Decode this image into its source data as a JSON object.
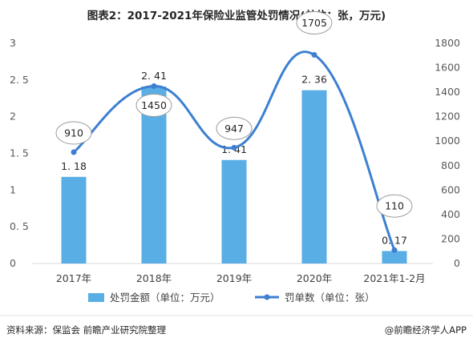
{
  "title": "图表2：2017-2021年保险业监管处罚情况(单位：张，万元)",
  "footer": {
    "source": "资料来源：保监会 前瞻产业研究院整理",
    "credit": "@前瞻经济学人APP"
  },
  "colors": {
    "bar": "#5aaee6",
    "line": "#3d7fd1",
    "bubble_stroke": "#9c9c9c"
  },
  "chart_data": {
    "type": "bar",
    "categories": [
      "2017年",
      "2018年",
      "2019年",
      "2020年",
      "2021年1-2月"
    ],
    "series": [
      {
        "name": "处罚金额（单位：万元）",
        "type": "bar",
        "axis": "left",
        "values": [
          1.18,
          2.41,
          1.41,
          2.36,
          0.17
        ],
        "labels": [
          "1. 18",
          "2. 41",
          "1. 41",
          "2. 36",
          "0. 17"
        ]
      },
      {
        "name": "罚单数（单位：张）",
        "type": "line",
        "axis": "right",
        "smooth": true,
        "values": [
          910,
          1450,
          947,
          1705,
          110
        ],
        "labels": [
          "910",
          "1450",
          "947",
          "1705",
          "110"
        ]
      }
    ],
    "y_left": {
      "ylim": [
        0,
        3
      ],
      "ticks": [
        0,
        0.5,
        1,
        1.5,
        2,
        2.5,
        3
      ],
      "tick_labels": [
        "0",
        "0. 5",
        "1",
        "1. 5",
        "2",
        "2. 5",
        "3"
      ]
    },
    "y_right": {
      "ylim": [
        0,
        1800
      ],
      "ticks": [
        0,
        200,
        400,
        600,
        800,
        1000,
        1200,
        1400,
        1600,
        1800
      ],
      "tick_labels": [
        "0",
        "200",
        "400",
        "600",
        "800",
        "1000",
        "1200",
        "1400",
        "1600",
        "1800"
      ]
    },
    "grid": false,
    "legend_position": "bottom"
  }
}
